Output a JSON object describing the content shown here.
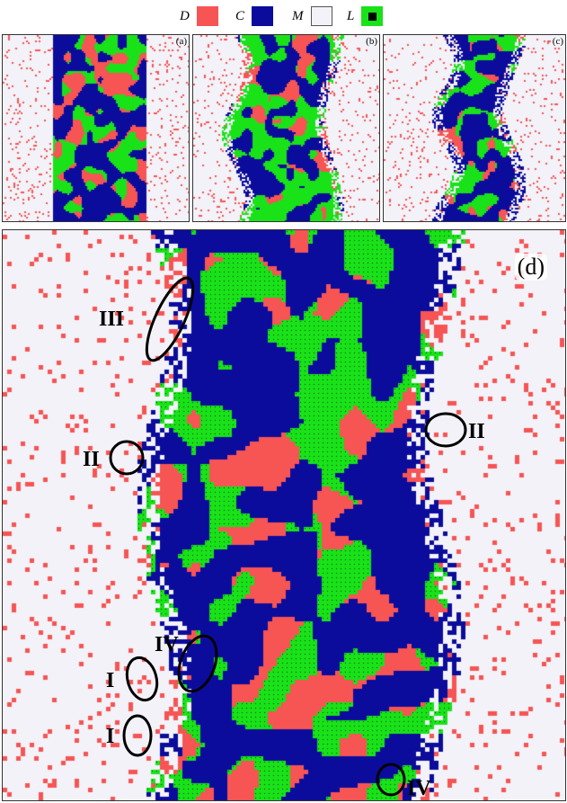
{
  "legend": [
    {
      "label": "D",
      "color": "#f75454",
      "icon": "square-swatch"
    },
    {
      "label": "C",
      "color": "#0c0c9c",
      "icon": "square-swatch"
    },
    {
      "label": "M",
      "color": "#f2f2f8",
      "icon": "square-swatch"
    },
    {
      "label": "L",
      "color": "#19e219",
      "icon": "square-with-black-center"
    }
  ],
  "panels": {
    "a": {
      "label": "(a)"
    },
    "b": {
      "label": "(b)"
    },
    "c": {
      "label": "(c)"
    },
    "d": {
      "label": "(d)"
    }
  },
  "annotations": [
    {
      "label": "III"
    },
    {
      "label": "II"
    },
    {
      "label": "II"
    },
    {
      "label": "IV"
    },
    {
      "label": "I"
    },
    {
      "label": "I"
    },
    {
      "label": "IV"
    }
  ],
  "colors": {
    "defector": "#f75454",
    "cooperator": "#0c0c9c",
    "empty": "#f2f2f8",
    "loner": "#19e219",
    "loner_dot": "#0a3a0a"
  }
}
